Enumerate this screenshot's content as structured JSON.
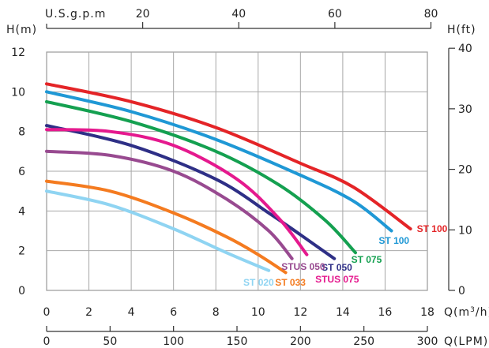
{
  "chart_data": {
    "type": "line",
    "axes": {
      "y_left": {
        "label": "H(m)",
        "min": 0,
        "max": 12,
        "ticks": [
          0,
          2,
          4,
          6,
          8,
          10,
          12
        ]
      },
      "y_right": {
        "label": "H(ft)",
        "min": 0,
        "max": 40,
        "ticks": [
          0,
          10,
          20,
          30,
          40
        ]
      },
      "x_bottom_main": {
        "label": "Q(m³/h)",
        "label_base": "Q(m",
        "label_sup": "3",
        "label_tail": "/h)",
        "min": 0,
        "max": 18,
        "ticks": [
          0,
          2,
          4,
          6,
          8,
          10,
          12,
          14,
          16,
          18
        ]
      },
      "x_top": {
        "label": "U.S.g.p.m",
        "min": 0,
        "max": 80,
        "ticks": [
          20,
          40,
          60,
          80
        ]
      },
      "x_bottom_lpm": {
        "label": "Q(LPM)",
        "min": 0,
        "max": 300,
        "ticks": [
          0,
          50,
          100,
          150,
          200,
          250,
          300
        ]
      }
    },
    "grid": true,
    "series": [
      {
        "name": "ST 100",
        "color": "#e42427",
        "points": [
          [
            0,
            10.4
          ],
          [
            4,
            9.5
          ],
          [
            8,
            8.2
          ],
          [
            12,
            6.4
          ],
          [
            14.5,
            5.2
          ],
          [
            17.2,
            3.1
          ]
        ]
      },
      {
        "name": "ST 100",
        "color": "#1f98d5",
        "points": [
          [
            0,
            10.0
          ],
          [
            4,
            9.0
          ],
          [
            8,
            7.6
          ],
          [
            12,
            5.8
          ],
          [
            14.5,
            4.5
          ],
          [
            16.3,
            3.0
          ]
        ]
      },
      {
        "name": "ST 075",
        "color": "#14a050",
        "points": [
          [
            0,
            9.5
          ],
          [
            4,
            8.5
          ],
          [
            8,
            7.0
          ],
          [
            11,
            5.3
          ],
          [
            13.2,
            3.5
          ],
          [
            14.6,
            1.9
          ]
        ]
      },
      {
        "name": "ST 050",
        "color": "#2e2f86",
        "points": [
          [
            0,
            8.3
          ],
          [
            4,
            7.3
          ],
          [
            8,
            5.6
          ],
          [
            10.5,
            3.9
          ],
          [
            12,
            2.8
          ],
          [
            13.6,
            1.6
          ]
        ]
      },
      {
        "name": "STUS 075",
        "color": "#e5198e",
        "points": [
          [
            0,
            8.1
          ],
          [
            3,
            8.0
          ],
          [
            6,
            7.3
          ],
          [
            9,
            5.6
          ],
          [
            11,
            3.6
          ],
          [
            12.3,
            1.8
          ]
        ]
      },
      {
        "name": "STUS 050",
        "color": "#984a90",
        "points": [
          [
            0,
            7.0
          ],
          [
            3,
            6.8
          ],
          [
            6,
            6.0
          ],
          [
            8.5,
            4.6
          ],
          [
            10.5,
            3.0
          ],
          [
            11.6,
            1.6
          ]
        ]
      },
      {
        "name": "ST 033",
        "color": "#f47b20",
        "points": [
          [
            0,
            5.5
          ],
          [
            3,
            5.0
          ],
          [
            6,
            3.9
          ],
          [
            8.5,
            2.7
          ],
          [
            10,
            1.8
          ],
          [
            11.3,
            0.9
          ]
        ]
      },
      {
        "name": "ST 020",
        "color": "#8fd4f2",
        "points": [
          [
            0,
            5.0
          ],
          [
            3,
            4.3
          ],
          [
            6,
            3.1
          ],
          [
            8.5,
            1.9
          ],
          [
            10.5,
            1.0
          ]
        ]
      }
    ],
    "series_labels": [
      {
        "text": "ST 100",
        "color": "#e42427",
        "at": [
          17.5,
          3.1
        ]
      },
      {
        "text": "ST 100",
        "color": "#1f98d5",
        "at": [
          15.7,
          2.5
        ]
      },
      {
        "text": "ST 075",
        "color": "#14a050",
        "at": [
          14.4,
          1.55
        ]
      },
      {
        "text": "ST 050",
        "color": "#2e2f86",
        "at": [
          13.0,
          1.15
        ]
      },
      {
        "text": "STUS 050",
        "color": "#984a90",
        "at": [
          11.1,
          1.2
        ]
      },
      {
        "text": "STUS 075",
        "color": "#e5198e",
        "at": [
          12.7,
          0.55
        ]
      },
      {
        "text": "ST 033",
        "color": "#f47b20",
        "at": [
          10.8,
          0.4
        ]
      },
      {
        "text": "ST 020",
        "color": "#8fd4f2",
        "at": [
          9.3,
          0.4
        ]
      }
    ]
  }
}
